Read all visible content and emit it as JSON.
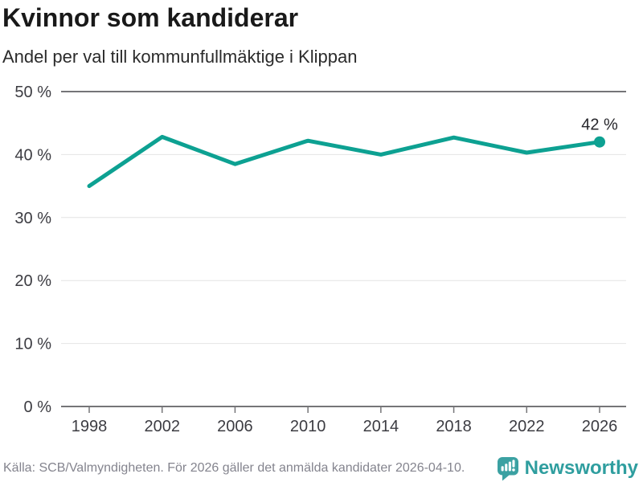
{
  "header": {
    "title": "Kvinnor som kandiderar",
    "subtitle": "Andel per val till kommunfullmäktige i Klippan"
  },
  "chart_data": {
    "type": "line",
    "title": "Kvinnor som kandiderar",
    "subtitle": "Andel per val till kommunfullmäktige i Klippan",
    "categories": [
      "1998",
      "2002",
      "2006",
      "2010",
      "2014",
      "2018",
      "2022",
      "2026"
    ],
    "values": [
      35,
      42.8,
      38.5,
      42.2,
      40,
      42.7,
      40.3,
      42
    ],
    "ylim": [
      0,
      50
    ],
    "y_tick_values": [
      0,
      10,
      20,
      30,
      40,
      50
    ],
    "y_ticks": [
      "0 %",
      "10 %",
      "20 %",
      "30 %",
      "40 %",
      "50 %"
    ],
    "last_point_label": "42 %",
    "grid": true,
    "legend": "none",
    "colors": {
      "line": "#0da192",
      "axis_dark": "#757578",
      "grid_light": "#e4e4e4",
      "tick_text": "#3c3c42",
      "annotation": "#26262b"
    }
  },
  "footer": {
    "source": "Källa: SCB/Valmyndigheten. För 2026 gäller det anmälda kandidater 2026-04-10.",
    "brand": "Newsworthy",
    "brand_color": "#2f9e9f",
    "brand_icon": "speech-bubble-bar-chart"
  }
}
